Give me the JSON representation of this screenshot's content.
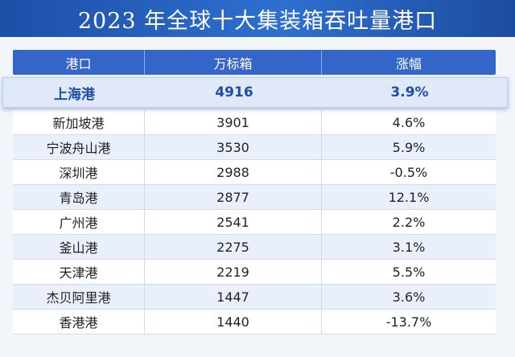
{
  "title": "2023 年全球十大集装箱吞吐量港口",
  "columns": [
    "港口",
    "万标箱",
    "涨幅"
  ],
  "highlight": {
    "port": "上海港",
    "teu": "4916",
    "growth": "3.9%"
  },
  "rows": [
    {
      "port": "新加坡港",
      "teu": "3901",
      "growth": "4.6%"
    },
    {
      "port": "宁波舟山港",
      "teu": "3530",
      "growth": "5.9%"
    },
    {
      "port": "深圳港",
      "teu": "2988",
      "growth": "-0.5%"
    },
    {
      "port": "青岛港",
      "teu": "2877",
      "growth": "12.1%"
    },
    {
      "port": "广州港",
      "teu": "2541",
      "growth": "2.2%"
    },
    {
      "port": "釜山港",
      "teu": "2275",
      "growth": "3.1%"
    },
    {
      "port": "天津港",
      "teu": "2219",
      "growth": "5.5%"
    },
    {
      "port": "杰贝阿里港",
      "teu": "1447",
      "growth": "3.6%"
    },
    {
      "port": "香港港",
      "teu": "1440",
      "growth": "-13.7%"
    }
  ]
}
